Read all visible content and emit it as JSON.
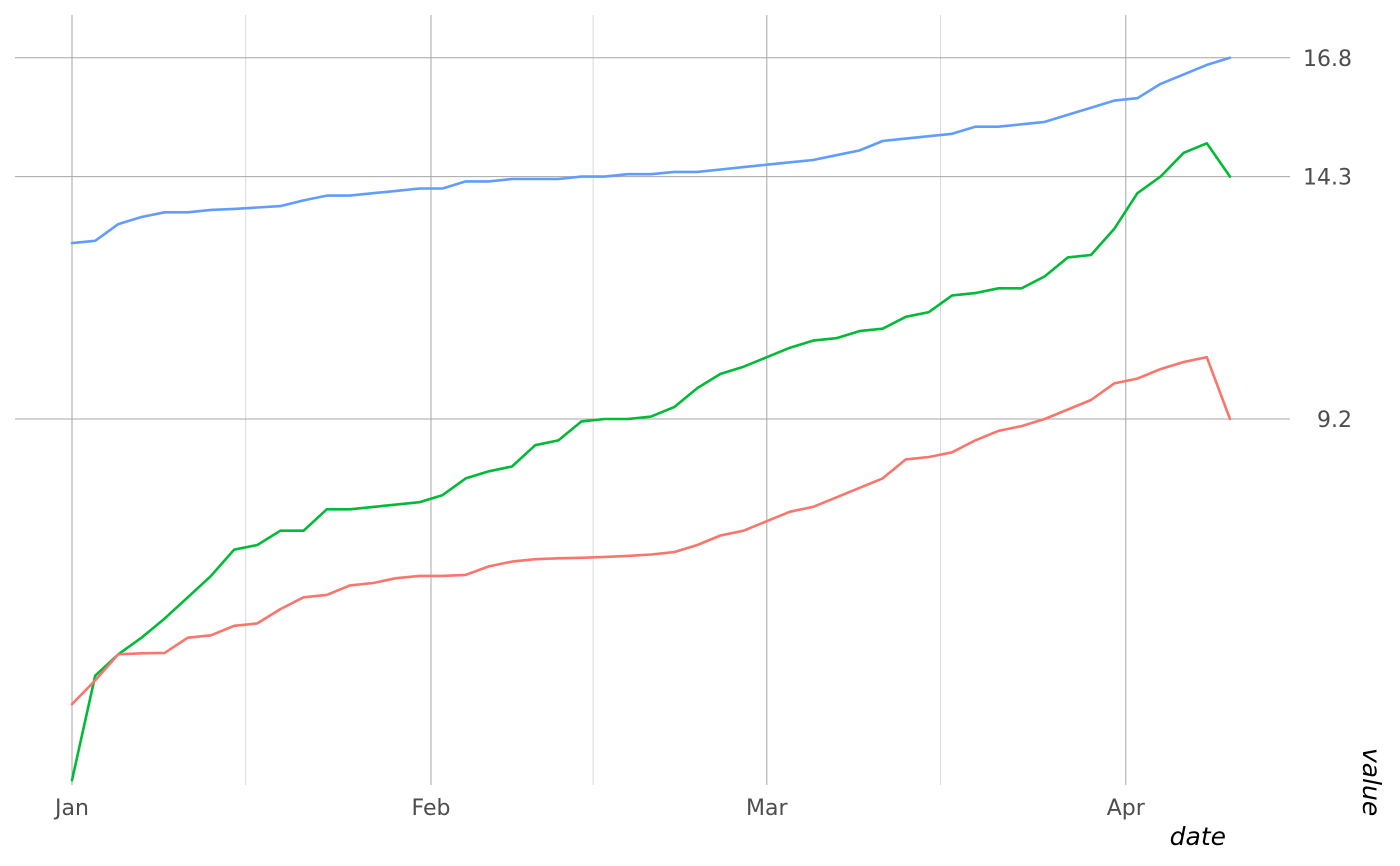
{
  "chart_data": {
    "type": "line",
    "title": "",
    "xlabel": "date",
    "ylabel": "value",
    "x_range": [
      "2024-01-01",
      "2024-04-10"
    ],
    "y_range": [
      1.5,
      17.7
    ],
    "x_ticks": [
      {
        "label": "Jan",
        "date": "2024-01-01"
      },
      {
        "label": "Feb",
        "date": "2024-02-01"
      },
      {
        "label": "Mar",
        "date": "2024-03-01"
      },
      {
        "label": "Apr",
        "date": "2024-04-01"
      }
    ],
    "x_minor_ticks": [
      "2024-01-16",
      "2024-02-15",
      "2024-03-16"
    ],
    "y_ticks": [
      {
        "label": "9.2",
        "value": 9.2
      },
      {
        "label": "14.3",
        "value": 14.3
      },
      {
        "label": "16.8",
        "value": 16.8
      }
    ],
    "grid": true,
    "legend": "none",
    "y_axis_position": "right",
    "x": [
      "2024-01-01",
      "2024-01-03",
      "2024-01-05",
      "2024-01-07",
      "2024-01-09",
      "2024-01-11",
      "2024-01-13",
      "2024-01-15",
      "2024-01-17",
      "2024-01-19",
      "2024-01-21",
      "2024-01-23",
      "2024-01-25",
      "2024-01-27",
      "2024-01-29",
      "2024-01-31",
      "2024-02-02",
      "2024-02-04",
      "2024-02-06",
      "2024-02-08",
      "2024-02-10",
      "2024-02-12",
      "2024-02-14",
      "2024-02-16",
      "2024-02-18",
      "2024-02-20",
      "2024-02-22",
      "2024-02-24",
      "2024-02-26",
      "2024-02-28",
      "2024-03-01",
      "2024-03-03",
      "2024-03-05",
      "2024-03-07",
      "2024-03-09",
      "2024-03-11",
      "2024-03-13",
      "2024-03-15",
      "2024-03-17",
      "2024-03-19",
      "2024-03-21",
      "2024-03-23",
      "2024-03-25",
      "2024-03-27",
      "2024-03-29",
      "2024-03-31",
      "2024-04-02",
      "2024-04-04",
      "2024-04-06",
      "2024-04-08",
      "2024-04-10"
    ],
    "series": [
      {
        "color": "#619CFF",
        "values": [
          12.9,
          12.95,
          13.3,
          13.45,
          13.55,
          13.55,
          13.6,
          13.62,
          13.65,
          13.68,
          13.8,
          13.9,
          13.9,
          13.95,
          14.0,
          14.05,
          14.05,
          14.2,
          14.2,
          14.25,
          14.25,
          14.25,
          14.3,
          14.3,
          14.35,
          14.35,
          14.4,
          14.4,
          14.45,
          14.5,
          14.55,
          14.6,
          14.65,
          14.75,
          14.85,
          15.05,
          15.1,
          15.15,
          15.2,
          15.35,
          15.35,
          15.4,
          15.45,
          15.6,
          15.75,
          15.9,
          15.95,
          16.25,
          16.45,
          16.65,
          16.8
        ]
      },
      {
        "color": "#00BA38",
        "values": [
          1.6,
          3.8,
          4.25,
          4.6,
          5.0,
          5.45,
          5.9,
          6.45,
          6.55,
          6.85,
          6.85,
          7.3,
          7.3,
          7.35,
          7.4,
          7.45,
          7.6,
          7.95,
          8.1,
          8.2,
          8.65,
          8.75,
          9.15,
          9.2,
          9.2,
          9.25,
          9.45,
          9.85,
          10.15,
          10.3,
          10.5,
          10.7,
          10.85,
          10.9,
          11.05,
          11.1,
          11.35,
          11.45,
          11.8,
          11.85,
          11.95,
          11.95,
          12.2,
          12.6,
          12.65,
          13.2,
          13.95,
          14.3,
          14.8,
          15.0,
          14.3
        ]
      },
      {
        "color": "#F8766D",
        "values": [
          3.2,
          3.7,
          4.25,
          4.27,
          4.28,
          4.6,
          4.65,
          4.85,
          4.9,
          5.2,
          5.45,
          5.5,
          5.7,
          5.75,
          5.85,
          5.9,
          5.9,
          5.92,
          6.1,
          6.2,
          6.25,
          6.27,
          6.28,
          6.3,
          6.32,
          6.35,
          6.4,
          6.55,
          6.75,
          6.85,
          7.05,
          7.25,
          7.35,
          7.55,
          7.75,
          7.95,
          8.35,
          8.4,
          8.5,
          8.75,
          8.95,
          9.05,
          9.2,
          9.4,
          9.6,
          9.95,
          10.05,
          10.25,
          10.4,
          10.5,
          9.2
        ]
      }
    ]
  }
}
